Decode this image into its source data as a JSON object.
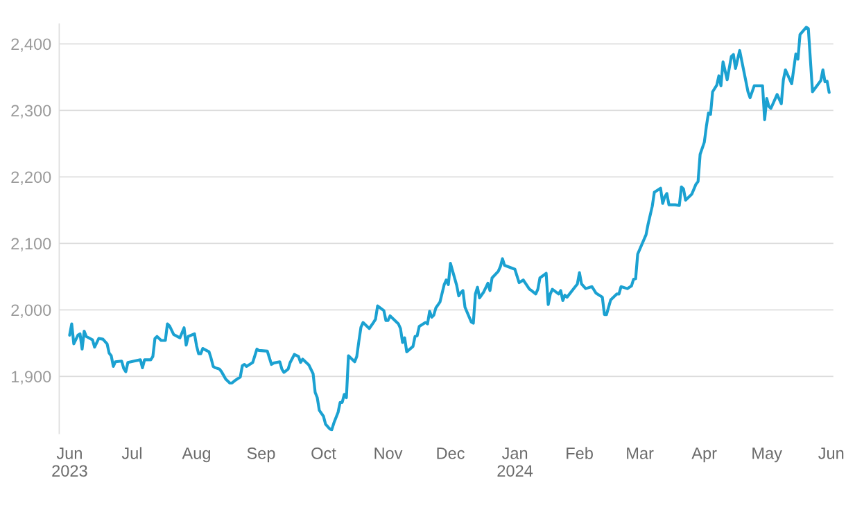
{
  "chart_data": {
    "type": "line",
    "x": [
      "2023-06-01",
      "2023-06-02",
      "2023-06-03",
      "2023-06-05",
      "2023-06-06",
      "2023-06-07",
      "2023-06-08",
      "2023-06-09",
      "2023-06-12",
      "2023-06-13",
      "2023-06-15",
      "2023-06-17",
      "2023-06-19",
      "2023-06-20",
      "2023-06-21",
      "2023-06-22",
      "2023-06-23",
      "2023-06-26",
      "2023-06-27",
      "2023-06-28",
      "2023-06-29",
      "2023-07-02",
      "2023-07-05",
      "2023-07-06",
      "2023-07-07",
      "2023-07-10",
      "2023-07-11",
      "2023-07-12",
      "2023-07-13",
      "2023-07-15",
      "2023-07-17",
      "2023-07-18",
      "2023-07-19",
      "2023-07-21",
      "2023-07-24",
      "2023-07-26",
      "2023-07-27",
      "2023-07-28",
      "2023-07-31",
      "2023-08-01",
      "2023-08-02",
      "2023-08-03",
      "2023-08-04",
      "2023-08-07",
      "2023-08-08",
      "2023-08-09",
      "2023-08-10",
      "2023-08-12",
      "2023-08-13",
      "2023-08-15",
      "2023-08-17",
      "2023-08-18",
      "2023-08-20",
      "2023-08-22",
      "2023-08-23",
      "2023-08-24",
      "2023-08-25",
      "2023-08-28",
      "2023-08-30",
      "2023-08-31",
      "2023-09-04",
      "2023-09-06",
      "2023-09-07",
      "2023-09-10",
      "2023-09-11",
      "2023-09-12",
      "2023-09-14",
      "2023-09-15",
      "2023-09-17",
      "2023-09-19",
      "2023-09-20",
      "2023-09-21",
      "2023-09-24",
      "2023-09-26",
      "2023-09-27",
      "2023-09-28",
      "2023-09-29",
      "2023-10-01",
      "2023-10-02",
      "2023-10-04",
      "2023-10-05",
      "2023-10-06",
      "2023-10-08",
      "2023-10-09",
      "2023-10-10",
      "2023-10-11",
      "2023-10-12",
      "2023-10-13",
      "2023-10-16",
      "2023-10-17",
      "2023-10-18",
      "2023-10-19",
      "2023-10-20",
      "2023-10-23",
      "2023-10-25",
      "2023-10-26",
      "2023-10-27",
      "2023-10-30",
      "2023-10-31",
      "2023-11-01",
      "2023-11-02",
      "2023-11-06",
      "2023-11-07",
      "2023-11-08",
      "2023-11-09",
      "2023-11-10",
      "2023-11-13",
      "2023-11-14",
      "2023-11-15",
      "2023-11-16",
      "2023-11-19",
      "2023-11-20",
      "2023-11-21",
      "2023-11-22",
      "2023-11-23",
      "2023-11-24",
      "2023-11-26",
      "2023-11-28",
      "2023-11-29",
      "2023-11-30",
      "2023-12-01",
      "2023-12-04",
      "2023-12-05",
      "2023-12-06",
      "2023-12-07",
      "2023-12-08",
      "2023-12-11",
      "2023-12-12",
      "2023-12-13",
      "2023-12-14",
      "2023-12-15",
      "2023-12-17",
      "2023-12-19",
      "2023-12-20",
      "2023-12-21",
      "2023-12-24",
      "2023-12-25",
      "2023-12-26",
      "2023-12-27",
      "2024-01-01",
      "2024-01-03",
      "2024-01-05",
      "2024-01-08",
      "2024-01-09",
      "2024-01-11",
      "2024-01-12",
      "2024-01-13",
      "2024-01-16",
      "2024-01-17",
      "2024-01-18",
      "2024-01-19",
      "2024-01-22",
      "2024-01-23",
      "2024-01-24",
      "2024-01-25",
      "2024-01-26",
      "2024-01-30",
      "2024-01-31",
      "2024-02-01",
      "2024-02-02",
      "2024-02-04",
      "2024-02-07",
      "2024-02-09",
      "2024-02-12",
      "2024-02-13",
      "2024-02-14",
      "2024-02-16",
      "2024-02-19",
      "2024-02-20",
      "2024-02-21",
      "2024-02-24",
      "2024-02-26",
      "2024-02-27",
      "2024-02-28",
      "2024-02-29",
      "2024-03-04",
      "2024-03-05",
      "2024-03-07",
      "2024-03-08",
      "2024-03-11",
      "2024-03-12",
      "2024-03-13",
      "2024-03-14",
      "2024-03-15",
      "2024-03-18",
      "2024-03-20",
      "2024-03-21",
      "2024-03-22",
      "2024-03-23",
      "2024-03-26",
      "2024-03-28",
      "2024-03-29",
      "2024-03-30",
      "2024-04-01",
      "2024-04-02",
      "2024-04-03",
      "2024-04-04",
      "2024-04-05",
      "2024-04-07",
      "2024-04-08",
      "2024-04-09",
      "2024-04-10",
      "2024-04-12",
      "2024-04-14",
      "2024-04-15",
      "2024-04-16",
      "2024-04-18",
      "2024-04-22",
      "2024-04-23",
      "2024-04-25",
      "2024-04-29",
      "2024-04-30",
      "2024-05-01",
      "2024-05-02",
      "2024-05-03",
      "2024-05-06",
      "2024-05-08",
      "2024-05-09",
      "2024-05-10",
      "2024-05-13",
      "2024-05-15",
      "2024-05-16",
      "2024-05-17",
      "2024-05-20",
      "2024-05-21",
      "2024-05-23",
      "2024-05-27",
      "2024-05-28",
      "2024-05-29",
      "2024-05-30",
      "2024-05-31"
    ],
    "series": [
      {
        "color": "#1ba1d1",
        "values": [
          1962,
          1979,
          1949,
          1962,
          1964,
          1941,
          1968,
          1960,
          1955,
          1944,
          1957,
          1956,
          1949,
          1935,
          1931,
          1915,
          1922,
          1923,
          1912,
          1907,
          1921,
          1923,
          1925,
          1913,
          1925,
          1925,
          1930,
          1957,
          1960,
          1954,
          1954,
          1979,
          1976,
          1963,
          1958,
          1973,
          1947,
          1960,
          1964,
          1946,
          1934,
          1934,
          1942,
          1937,
          1927,
          1915,
          1913,
          1911,
          1907,
          1896,
          1890,
          1890,
          1895,
          1899,
          1916,
          1918,
          1915,
          1921,
          1941,
          1939,
          1938,
          1918,
          1920,
          1922,
          1911,
          1906,
          1911,
          1921,
          1933,
          1930,
          1921,
          1926,
          1917,
          1904,
          1876,
          1868,
          1849,
          1840,
          1828,
          1821,
          1820,
          1830,
          1846,
          1861,
          1861,
          1873,
          1868,
          1931,
          1922,
          1930,
          1953,
          1974,
          1981,
          1972,
          1981,
          1986,
          2006,
          1999,
          1984,
          1984,
          1991,
          1979,
          1972,
          1951,
          1958,
          1937,
          1945,
          1960,
          1961,
          1975,
          1981,
          1979,
          1998,
          1989,
          1992,
          2003,
          2012,
          2038,
          2045,
          2038,
          2070,
          2037,
          2021,
          2026,
          2029,
          2004,
          1982,
          1980,
          2024,
          2034,
          2018,
          2027,
          2040,
          2029,
          2048,
          2058,
          2065,
          2077,
          2067,
          2061,
          2041,
          2045,
          2031,
          2029,
          2024,
          2031,
          2048,
          2055,
          2008,
          2024,
          2031,
          2024,
          2029,
          2014,
          2022,
          2019,
          2035,
          2039,
          2056,
          2039,
          2032,
          2035,
          2025,
          2019,
          1993,
          1993,
          2015,
          2024,
          2024,
          2035,
          2032,
          2036,
          2046,
          2047,
          2084,
          2113,
          2129,
          2156,
          2177,
          2183,
          2160,
          2170,
          2175,
          2158,
          2158,
          2157,
          2185,
          2182,
          2165,
          2174,
          2189,
          2193,
          2234,
          2252,
          2276,
          2296,
          2294,
          2328,
          2338,
          2352,
          2337,
          2373,
          2346,
          2381,
          2384,
          2363,
          2390,
          2328,
          2319,
          2337,
          2337,
          2286,
          2318,
          2306,
          2303,
          2324,
          2310,
          2346,
          2361,
          2340,
          2385,
          2377,
          2414,
          2425,
          2423,
          2328,
          2345,
          2361,
          2343,
          2344,
          2327
        ]
      }
    ],
    "xlim": [
      "2023-05-27",
      "2024-06-02"
    ],
    "xticks": [
      {
        "value": "2023-06-01",
        "label": "Jun\n2023"
      },
      {
        "value": "2023-07-01",
        "label": "Jul"
      },
      {
        "value": "2023-08-01",
        "label": "Aug"
      },
      {
        "value": "2023-09-01",
        "label": "Sep"
      },
      {
        "value": "2023-10-01",
        "label": "Oct"
      },
      {
        "value": "2023-11-01",
        "label": "Nov"
      },
      {
        "value": "2023-12-01",
        "label": "Dec"
      },
      {
        "value": "2024-01-01",
        "label": "Jan\n2024"
      },
      {
        "value": "2024-02-01",
        "label": "Feb"
      },
      {
        "value": "2024-03-01",
        "label": "Mar"
      },
      {
        "value": "2024-04-01",
        "label": "Apr"
      },
      {
        "value": "2024-05-01",
        "label": "May"
      },
      {
        "value": "2024-06-01",
        "label": "Jun"
      }
    ],
    "ylim": [
      1814,
      2430
    ],
    "yticks": [
      {
        "value": 1900,
        "label": "1,900"
      },
      {
        "value": 2000,
        "label": "2,000"
      },
      {
        "value": 2100,
        "label": "2,100"
      },
      {
        "value": 2200,
        "label": "2,200"
      },
      {
        "value": 2300,
        "label": "2,300"
      },
      {
        "value": 2400,
        "label": "2,400"
      }
    ],
    "grid": "y",
    "marker": "none",
    "line_style": "solid"
  }
}
